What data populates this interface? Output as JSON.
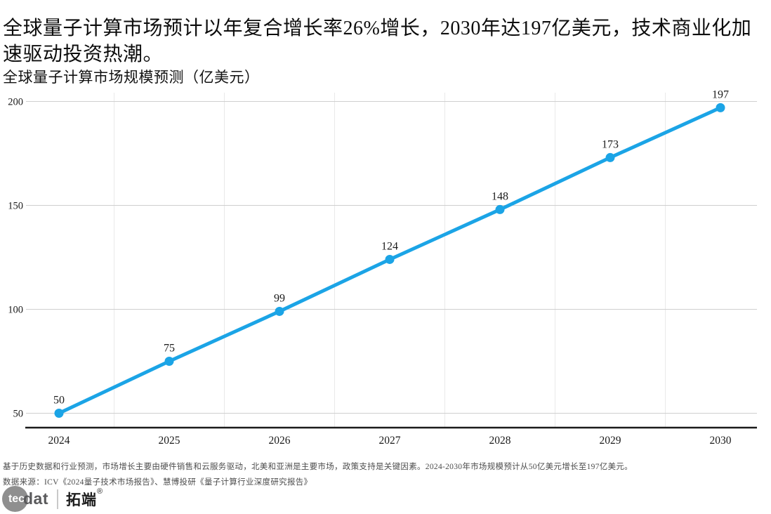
{
  "headline": "全球量子计算市场预计以年复合增长率26%增长，2030年达197亿美元，技术商业化加速驱动投资热潮。",
  "chart_data": {
    "type": "line",
    "title": "全球量子计算市场规模预测（亿美元）",
    "categories": [
      "2024",
      "2025",
      "2026",
      "2027",
      "2028",
      "2029",
      "2030"
    ],
    "values": [
      50,
      75,
      99,
      124,
      148,
      173,
      197
    ],
    "xlabel": "",
    "ylabel": "",
    "ylim": [
      50,
      200
    ],
    "yticks": [
      50,
      100,
      150,
      200
    ],
    "grid": true,
    "legend": "none",
    "line_color": "#1ba4e6",
    "point_labels_shown": true
  },
  "footer": {
    "note": "基于历史数据和行业预测，市场增长主要由硬件销售和云服务驱动，北美和亚洲是主要市场，政策支持是关键因素。2024-2030年市场规模预计从50亿美元增长至197亿美元。",
    "source": "数据来源：ICV《2024量子技术市场报告》、慧博投研《量子计算行业深度研究报告》"
  },
  "logo": {
    "circle_text": "tec",
    "suffix": "dat",
    "brand": "拓端",
    "registered": "®"
  }
}
